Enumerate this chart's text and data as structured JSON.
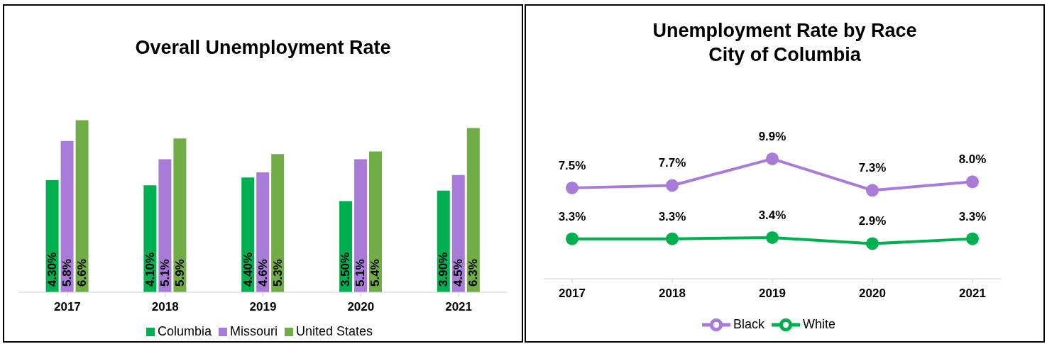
{
  "chart_data": [
    {
      "type": "bar",
      "title": "Overall Unemployment Rate",
      "categories": [
        "2017",
        "2018",
        "2019",
        "2020",
        "2021"
      ],
      "legend": "bottom",
      "series": [
        {
          "name": "Columbia",
          "color": "#00b050",
          "values": [
            4.3,
            4.1,
            4.4,
            3.5,
            3.9
          ],
          "value_labels": [
            "4.30%",
            "4.10%",
            "4.40%",
            "3.50%",
            "3.90%"
          ]
        },
        {
          "name": "Missouri",
          "color": "#a97bd9",
          "values": [
            5.8,
            5.1,
            4.6,
            5.1,
            4.5
          ],
          "value_labels": [
            "5.8%",
            "5.1%",
            "4.6%",
            "5.1%",
            "4.5%"
          ]
        },
        {
          "name": "United States",
          "color": "#70ad47",
          "values": [
            6.6,
            5.9,
            5.3,
            5.4,
            6.3
          ],
          "value_labels": [
            "6.6%",
            "5.9%",
            "5.3%",
            "5.4%",
            "6.3%"
          ]
        }
      ]
    },
    {
      "type": "line",
      "title": "Unemployment Rate by Race",
      "subtitle": "City of Columbia",
      "categories": [
        "2017",
        "2018",
        "2019",
        "2020",
        "2021"
      ],
      "legend": "bottom",
      "marker": "circle",
      "series": [
        {
          "name": "White",
          "color": "#00b050",
          "values": [
            3.3,
            3.3,
            3.4,
            2.9,
            3.3
          ],
          "value_labels": [
            "3.3%",
            "3.3%",
            "3.4%",
            "2.9%",
            "3.3%"
          ]
        },
        {
          "name": "Black",
          "color": "#a97bd9",
          "values": [
            7.5,
            7.7,
            9.9,
            7.3,
            8.0
          ],
          "value_labels": [
            "7.5%",
            "7.7%",
            "9.9%",
            "7.3%",
            "8.0%"
          ]
        }
      ]
    }
  ]
}
